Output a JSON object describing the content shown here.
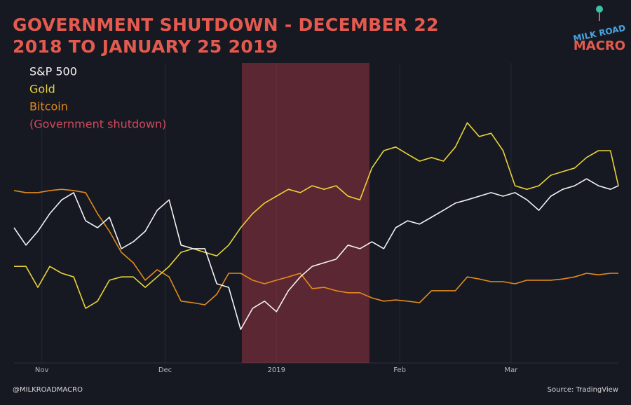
{
  "chart_data": {
    "type": "line",
    "title": "GOVERNMENT SHUTDOWN - DECEMBER 22 2018 TO JANUARY 25 2019",
    "brand": {
      "top": "MILK ROAD",
      "bottom": "MACRO"
    },
    "handle": "@MILKROADMACRO",
    "source": "Source: TradingView",
    "x": [
      0,
      3,
      6,
      9,
      12,
      15,
      18,
      21,
      24,
      27,
      30,
      33,
      36,
      39,
      42,
      45,
      48,
      51,
      54,
      57,
      60,
      63,
      66,
      69,
      72,
      75,
      78,
      81,
      84,
      87,
      90,
      93,
      96,
      99,
      102,
      105,
      108,
      111,
      114,
      117,
      120,
      123,
      126,
      129,
      132,
      135,
      138,
      141,
      144,
      147,
      150,
      152
    ],
    "xlim": [
      0,
      152
    ],
    "xticks": [
      {
        "value": 7,
        "label": "Nov"
      },
      {
        "value": 38,
        "label": "Dec"
      },
      {
        "value": 66,
        "label": "2019"
      },
      {
        "value": 97,
        "label": "Feb"
      },
      {
        "value": 125,
        "label": "Mar"
      }
    ],
    "ylim": [
      0,
      100
    ],
    "grid": true,
    "shutdown": {
      "label": "(Government shutdown)",
      "range": [
        57.3,
        89.4
      ],
      "color": "#b03a48"
    },
    "series": [
      {
        "name": "S&P 500",
        "color": "#f2f2f2",
        "values": [
          45.1,
          39.3,
          43.9,
          49.8,
          54.4,
          56.8,
          47.4,
          45.1,
          48.6,
          38.1,
          40.4,
          43.9,
          50.9,
          54.4,
          39.3,
          38.1,
          38.1,
          26.4,
          25.2,
          11.2,
          18.2,
          20.6,
          17.1,
          24.1,
          28.7,
          32.2,
          33.4,
          34.6,
          39.3,
          38.1,
          40.4,
          38.1,
          45.1,
          47.4,
          46.3,
          48.6,
          50.9,
          53.3,
          54.4,
          55.6,
          56.8,
          55.6,
          56.8,
          54.4,
          50.9,
          55.6,
          57.9,
          59.1,
          61.4,
          59.1,
          57.9,
          59.1
        ]
      },
      {
        "name": "Gold",
        "color": "#e8d33a",
        "values": [
          32.2,
          32.2,
          25.2,
          32.2,
          29.9,
          28.7,
          18.2,
          20.6,
          27.6,
          28.7,
          28.7,
          25.2,
          28.7,
          32.2,
          36.9,
          38.1,
          36.9,
          35.7,
          39.3,
          45.1,
          49.8,
          53.3,
          55.6,
          57.9,
          56.8,
          59.1,
          57.9,
          59.1,
          55.6,
          54.4,
          65.0,
          70.8,
          72.0,
          69.6,
          67.3,
          68.5,
          67.3,
          72.0,
          80.1,
          75.5,
          76.6,
          70.8,
          59.1,
          57.9,
          59.1,
          62.6,
          63.8,
          65.0,
          68.5,
          70.8,
          70.8,
          59.1
        ]
      },
      {
        "name": "Bitcoin",
        "color": "#e38a1c",
        "values": [
          57.5,
          56.8,
          56.8,
          57.5,
          57.9,
          57.5,
          56.8,
          49.8,
          43.9,
          36.9,
          33.4,
          27.6,
          31.1,
          28.7,
          20.6,
          20.1,
          19.4,
          22.9,
          29.9,
          29.9,
          27.6,
          26.4,
          27.6,
          28.7,
          29.9,
          24.8,
          25.2,
          24.1,
          23.4,
          23.4,
          21.7,
          20.6,
          21.0,
          20.6,
          20.1,
          24.1,
          24.1,
          24.1,
          28.7,
          28.0,
          27.1,
          27.1,
          26.4,
          27.6,
          27.6,
          27.6,
          28.0,
          28.7,
          29.9,
          29.4,
          29.9,
          29.9
        ]
      }
    ]
  }
}
